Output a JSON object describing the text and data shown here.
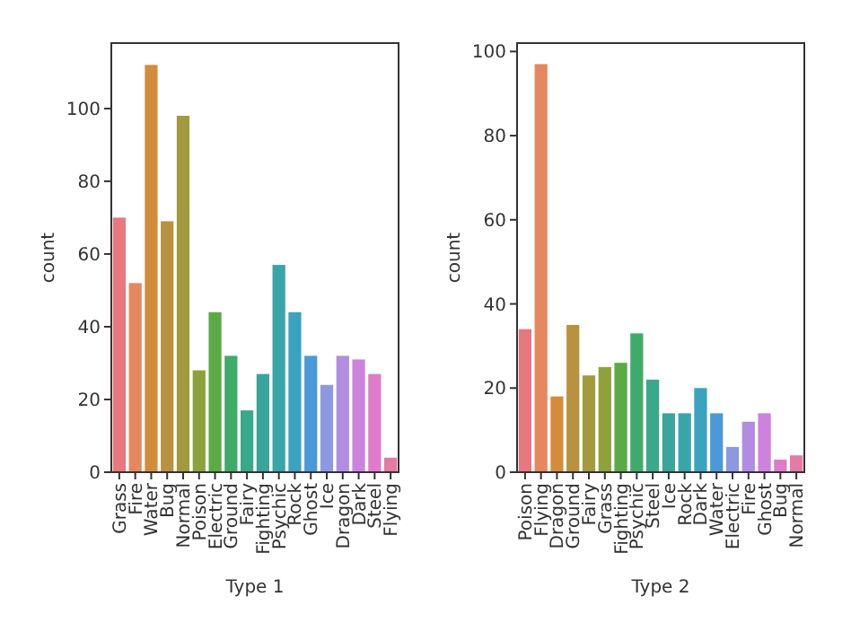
{
  "chart_data": [
    {
      "type": "bar",
      "xlabel": "Type 1",
      "ylabel": "count",
      "categories": [
        "Grass",
        "Fire",
        "Water",
        "Bug",
        "Normal",
        "Poison",
        "Electric",
        "Ground",
        "Fairy",
        "Fighting",
        "Psychic",
        "Rock",
        "Ghost",
        "Ice",
        "Dragon",
        "Dark",
        "Steel",
        "Flying"
      ],
      "values": [
        70,
        52,
        112,
        69,
        98,
        28,
        44,
        32,
        17,
        27,
        57,
        44,
        32,
        24,
        32,
        31,
        27,
        4
      ],
      "colors": [
        "#e8777f",
        "#e5885e",
        "#d48c3c",
        "#b8923e",
        "#a29a3c",
        "#8ea23c",
        "#5aab45",
        "#3fab6b",
        "#3aa88a",
        "#3aa59a",
        "#38a6a9",
        "#3ba2bf",
        "#4a9ad9",
        "#8b9ae0",
        "#b08de0",
        "#cd82de",
        "#e07bca",
        "#e47aa5"
      ],
      "ylim": [
        0,
        118
      ],
      "yticks": [
        0,
        20,
        40,
        60,
        80,
        100
      ]
    },
    {
      "type": "bar",
      "xlabel": "Type 2",
      "ylabel": "count",
      "categories": [
        "Poison",
        "Flying",
        "Dragon",
        "Ground",
        "Fairy",
        "Grass",
        "Fighting",
        "Psychic",
        "Steel",
        "Ice",
        "Rock",
        "Dark",
        "Water",
        "Electric",
        "Fire",
        "Ghost",
        "Bug",
        "Normal"
      ],
      "values": [
        34,
        97,
        18,
        35,
        23,
        25,
        26,
        33,
        22,
        14,
        14,
        20,
        14,
        6,
        12,
        14,
        3,
        4
      ],
      "colors": [
        "#e8777f",
        "#e5885e",
        "#d48c3c",
        "#b8923e",
        "#a29a3c",
        "#8ea23c",
        "#5aab45",
        "#3fab6b",
        "#3aa88a",
        "#3aa59a",
        "#38a6a9",
        "#3ba2bf",
        "#4a9ad9",
        "#8b9ae0",
        "#b08de0",
        "#cd82de",
        "#e07bca",
        "#e47aa5"
      ],
      "ylim": [
        0,
        102
      ],
      "yticks": [
        0,
        20,
        40,
        60,
        80,
        100
      ]
    }
  ]
}
